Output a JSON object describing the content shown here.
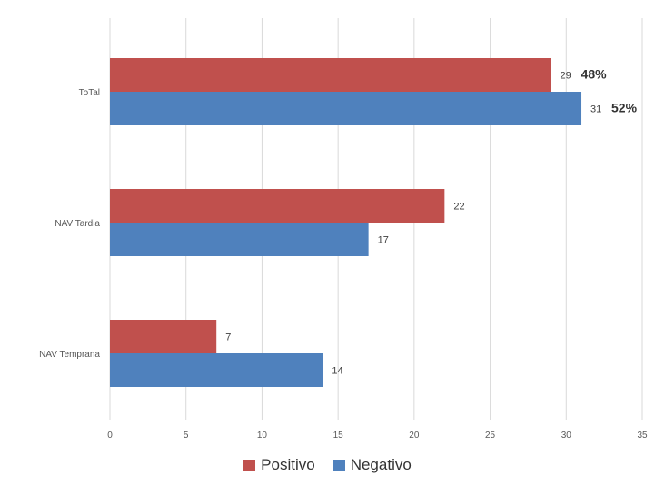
{
  "chart_data": {
    "type": "bar",
    "orientation": "horizontal",
    "categories": [
      "ToTal",
      "NAV Tardia",
      "NAV Temprana"
    ],
    "series": [
      {
        "name": "Positivo",
        "color": "#C0504D",
        "values": [
          29,
          22,
          7
        ],
        "labels": [
          "29",
          "22",
          "7"
        ],
        "percent_labels": [
          "48%",
          "",
          ""
        ]
      },
      {
        "name": "Negativo",
        "color": "#4F81BD",
        "values": [
          31,
          17,
          14
        ],
        "labels": [
          "31",
          "17",
          "14"
        ],
        "percent_labels": [
          "52%",
          "",
          ""
        ]
      }
    ],
    "xlim": [
      0,
      35
    ],
    "xticks": [
      0,
      5,
      10,
      15,
      20,
      25,
      30,
      35
    ],
    "grid": true,
    "legend_position": "bottom",
    "title": "",
    "xlabel": "",
    "ylabel": ""
  }
}
